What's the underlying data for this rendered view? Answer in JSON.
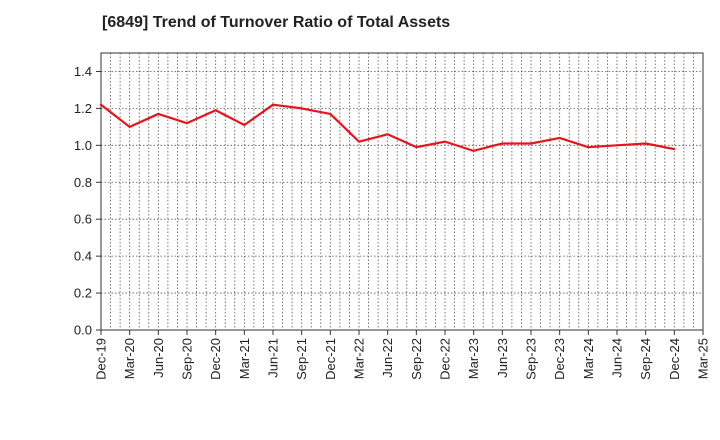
{
  "chart_data": {
    "type": "line",
    "title": "[6849]  Trend of Turnover Ratio of Total Assets",
    "xlabel": "",
    "ylabel": "",
    "ylim": [
      0,
      1.5
    ],
    "yticks": [
      0.0,
      0.2,
      0.4,
      0.6,
      0.8,
      1.0,
      1.2,
      1.4
    ],
    "ytick_labels": [
      "0.0",
      "0.2",
      "0.4",
      "0.6",
      "0.8",
      "1.0",
      "1.2",
      "1.4"
    ],
    "grid": true,
    "legend": "none",
    "x": [
      "Dec-19",
      "Mar-20",
      "Jun-20",
      "Sep-20",
      "Dec-20",
      "Mar-21",
      "Jun-21",
      "Sep-21",
      "Dec-21",
      "Mar-22",
      "Jun-22",
      "Sep-22",
      "Dec-22",
      "Mar-23",
      "Jun-23",
      "Sep-23",
      "Dec-23",
      "Mar-24",
      "Jun-24",
      "Sep-24",
      "Dec-24",
      "Mar-25"
    ],
    "series": [
      {
        "color": "#e8141c",
        "values": [
          1.22,
          1.1,
          1.17,
          1.12,
          1.19,
          1.11,
          1.22,
          1.2,
          1.17,
          1.02,
          1.06,
          0.99,
          1.02,
          0.97,
          1.01,
          1.01,
          1.04,
          0.99,
          1.0,
          1.01,
          0.98,
          null
        ]
      }
    ]
  }
}
